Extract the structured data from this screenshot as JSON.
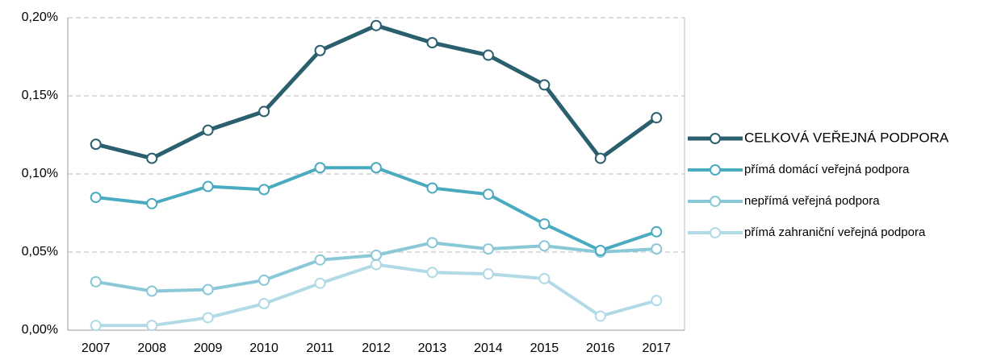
{
  "chart_data": {
    "type": "line",
    "categories": [
      "2007",
      "2008",
      "2009",
      "2010",
      "2011",
      "2012",
      "2013",
      "2014",
      "2015",
      "2016",
      "2017"
    ],
    "series": [
      {
        "name": "CELKOVÁ VEŘEJNÁ PODPORA",
        "color": "#2a5f6e",
        "values": [
          0.119,
          0.11,
          0.128,
          0.14,
          0.179,
          0.195,
          0.184,
          0.176,
          0.157,
          0.11,
          0.136
        ]
      },
      {
        "name": "přímá domácí veřejná podpora",
        "color": "#4aaac0",
        "values": [
          0.085,
          0.081,
          0.092,
          0.09,
          0.104,
          0.104,
          0.091,
          0.087,
          0.068,
          0.051,
          0.063
        ]
      },
      {
        "name": "nepřímá veřejná podpora",
        "color": "#8ac8d8",
        "values": [
          0.031,
          0.025,
          0.026,
          0.032,
          0.045,
          0.048,
          0.056,
          0.052,
          0.054,
          0.05,
          0.052
        ]
      },
      {
        "name": "přímá zahraniční veřejná podpora",
        "color": "#b0dbe6",
        "values": [
          0.003,
          0.003,
          0.008,
          0.017,
          0.03,
          0.042,
          0.037,
          0.036,
          0.033,
          0.009,
          0.019
        ]
      }
    ],
    "ylim": [
      0,
      0.2
    ],
    "yticks": [
      {
        "value": 0,
        "label": "0,00%"
      },
      {
        "value": 0.05,
        "label": "0,05%"
      },
      {
        "value": 0.1,
        "label": "0,10%"
      },
      {
        "value": 0.15,
        "label": "0,15%"
      },
      {
        "value": 0.2,
        "label": "0,20%"
      }
    ],
    "grid": true,
    "legend": "right"
  }
}
